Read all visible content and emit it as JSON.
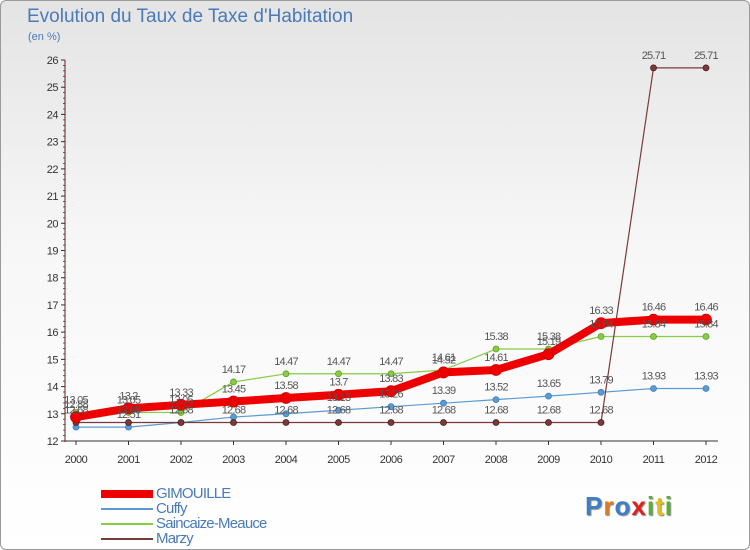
{
  "chart_data": {
    "type": "line",
    "title": "Evolution du Taux de Taxe d'Habitation",
    "subtitle": "(en %)",
    "x": [
      "2000",
      "2001",
      "2002",
      "2003",
      "2004",
      "2005",
      "2006",
      "2007",
      "2008",
      "2009",
      "2010",
      "2011",
      "2012"
    ],
    "ylim": [
      12,
      26
    ],
    "yticks": [
      12,
      13,
      14,
      15,
      16,
      17,
      18,
      19,
      20,
      21,
      22,
      23,
      24,
      25,
      26
    ],
    "grid": false,
    "legend_position": "bottom-left",
    "series": [
      {
        "name": "GIMOUILLE",
        "color": "#ee0000",
        "values": [
          12.88,
          13.2,
          13.33,
          13.45,
          13.58,
          13.7,
          13.83,
          14.52,
          14.61,
          15.19,
          16.33,
          16.46,
          16.46
        ],
        "labels": [
          "12.88",
          "13.2",
          "13.33",
          "13.45",
          "13.58",
          "13.7",
          "13.83",
          "14.52",
          "14.61",
          "15.19",
          "16.33",
          "16.46",
          "16.46"
        ]
      },
      {
        "name": "Cuffy",
        "color": "#5b9bd5",
        "values": [
          12.51,
          12.51,
          12.68,
          12.88,
          13.0,
          13.13,
          13.26,
          13.39,
          13.52,
          13.65,
          13.79,
          13.93,
          13.93
        ],
        "labels": [
          "",
          "12.51",
          "",
          "",
          "",
          "13.13",
          "13.26",
          "13.39",
          "13.52",
          "13.65",
          "13.79",
          "13.93",
          "13.93"
        ]
      },
      {
        "name": "Saincaize-Meauce",
        "color": "#88cc44",
        "values": [
          13.05,
          13.05,
          13.05,
          14.17,
          14.47,
          14.47,
          14.47,
          14.61,
          15.38,
          15.38,
          15.84,
          15.84,
          15.84
        ],
        "labels": [
          "13.05",
          "13.05",
          "13.05",
          "14.17",
          "14.47",
          "14.47",
          "14.47",
          "14.61",
          "15.38",
          "15.38",
          "15.84",
          "15.84",
          "15.84"
        ]
      },
      {
        "name": "Marzy",
        "color": "#7a3a3a",
        "values": [
          12.68,
          12.68,
          12.68,
          12.68,
          12.68,
          12.68,
          12.68,
          12.68,
          12.68,
          12.68,
          12.68,
          25.71,
          25.71
        ],
        "labels": [
          "12.68",
          "12.68",
          "12.68",
          "12.68",
          "12.68",
          "12.68",
          "12.68",
          "12.68",
          "12.68",
          "12.68",
          "12.68",
          "25.71",
          "25.71"
        ]
      }
    ]
  },
  "logo": {
    "letters": [
      "P",
      "r",
      "o",
      "x",
      "i",
      "t",
      "i"
    ],
    "colors": [
      "#3d7fc4",
      "#e07a1f",
      "#3d7fc4",
      "#e02020",
      "#58b030",
      "#e0c020",
      "#58b030"
    ]
  }
}
